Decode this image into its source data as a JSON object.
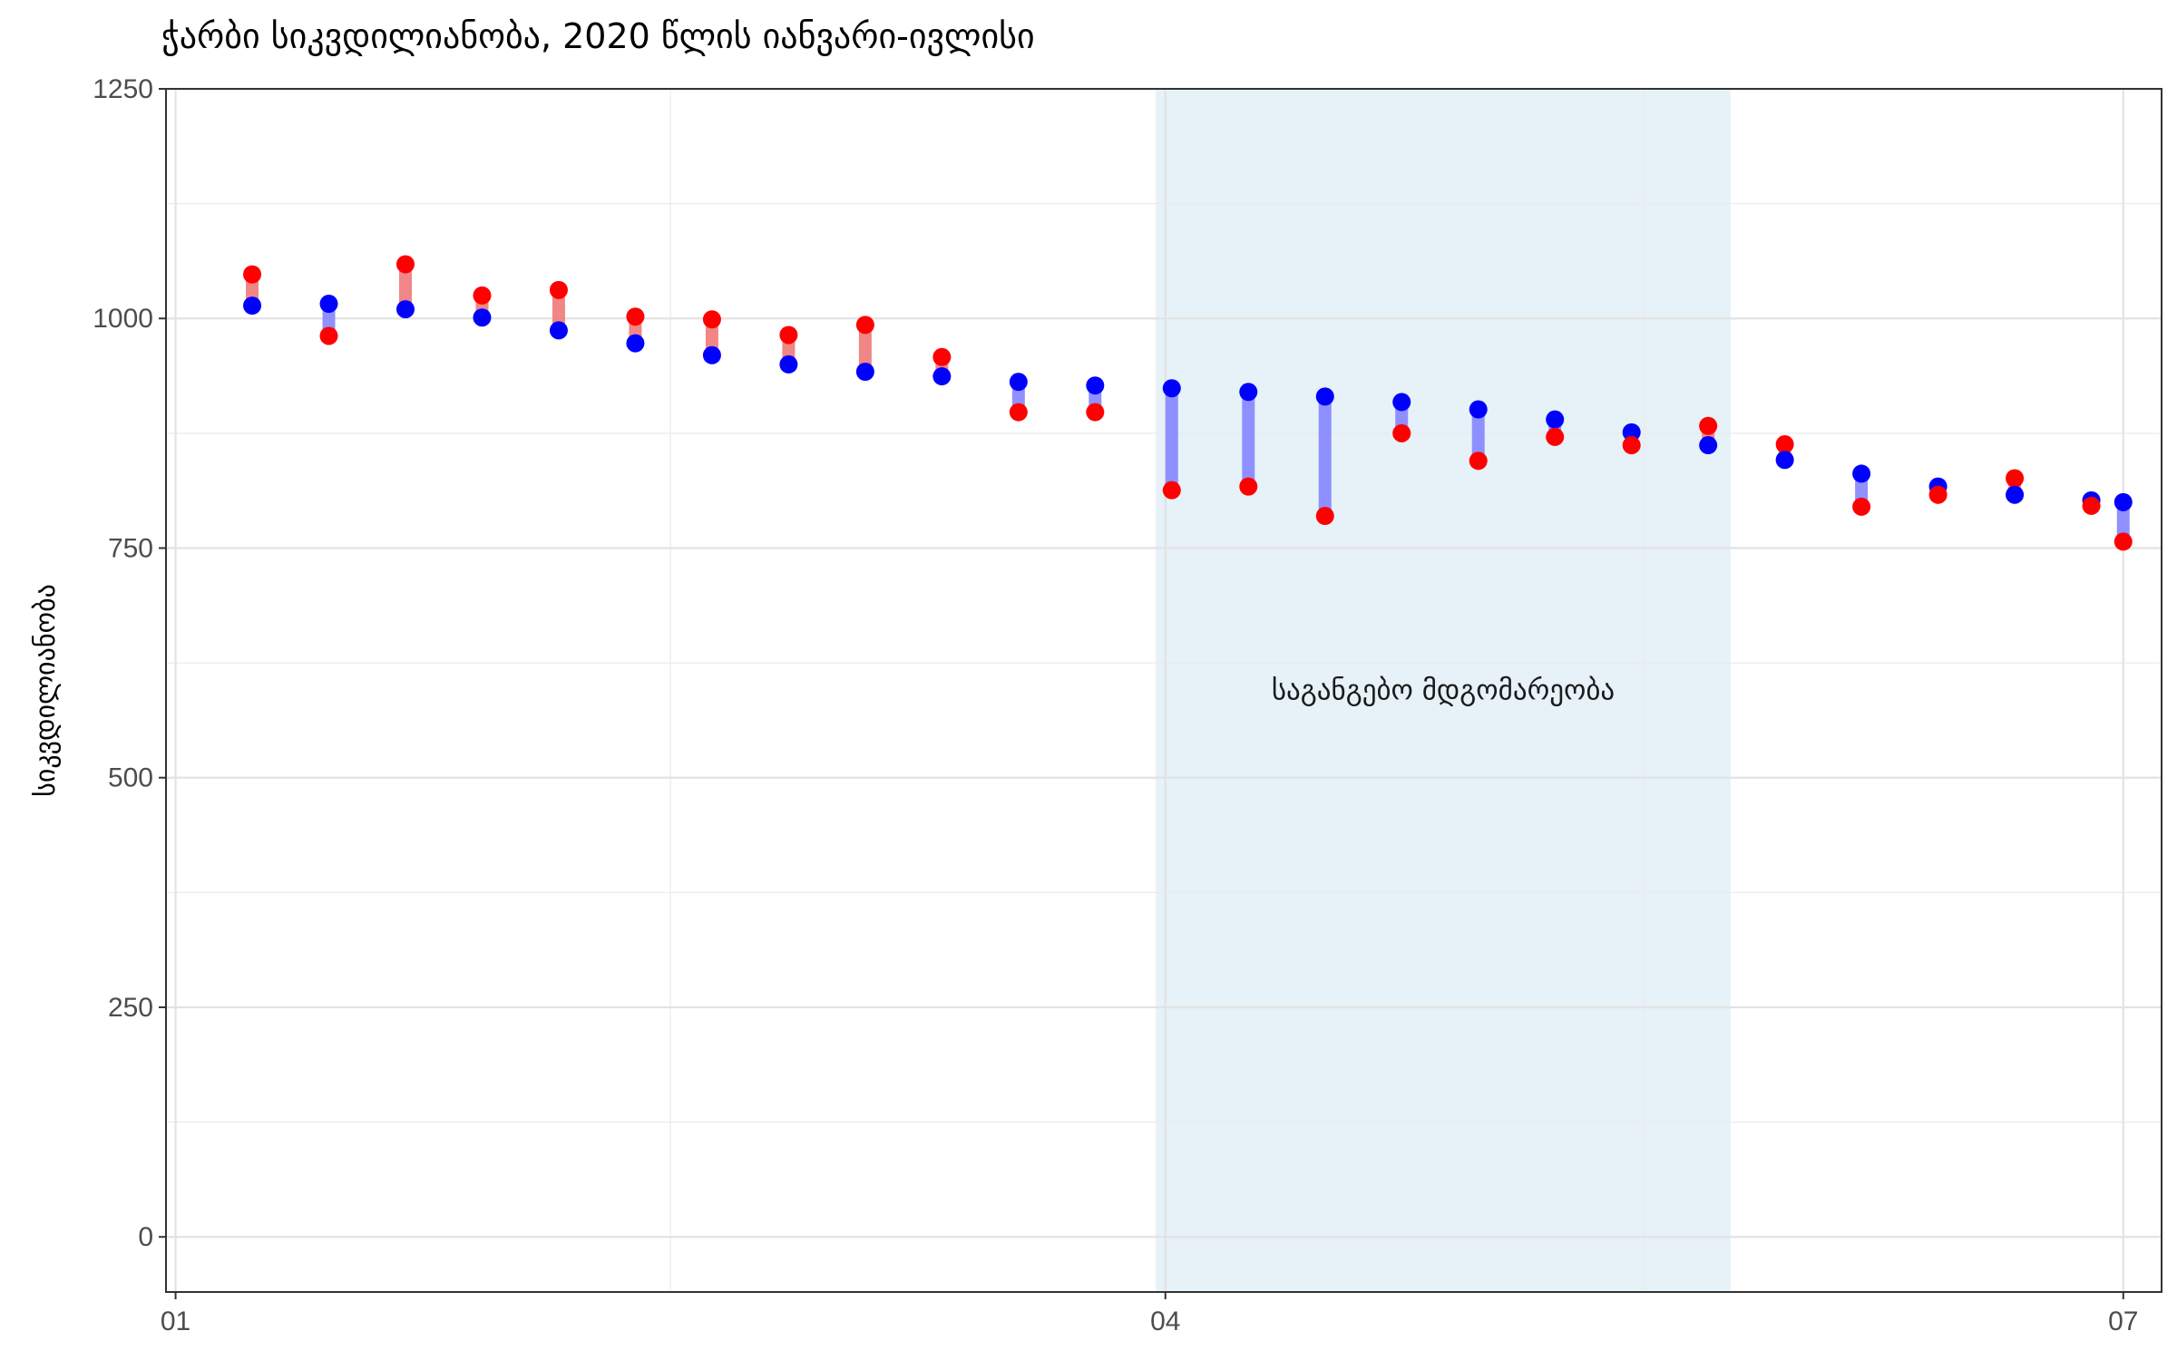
{
  "chart_data": {
    "type": "dumbbell",
    "title": "ჭარბი სიკვდილიანობა, 2020 წლის იანვარი-ივლისი",
    "ylabel": "სიკვდილიანობა",
    "xlabel": "",
    "ylim": [
      -60,
      1250
    ],
    "yticks": [
      0,
      250,
      500,
      750,
      1000,
      1250
    ],
    "xlim": [
      -0.03,
      6.22
    ],
    "xtick_labels": [
      {
        "label": "01",
        "pos": 0.0
      },
      {
        "label": "04",
        "pos": 3.1
      },
      {
        "label": "07",
        "pos": 6.1
      }
    ],
    "shaded_region": {
      "from": 3.07,
      "to": 4.87,
      "label": "საგანგებო მდგომარეობა",
      "label_y": 595
    },
    "colors": {
      "above": "#ff0000",
      "below": "#0000ff",
      "bar_above": "#f08080",
      "bar_below": "#8a8aff",
      "shade": "#e6f1f8"
    },
    "grid": true,
    "points": [
      {
        "x": 0.24,
        "red": 1048,
        "blue": 1014
      },
      {
        "x": 0.48,
        "red": 981,
        "blue": 1016
      },
      {
        "x": 0.72,
        "red": 1059,
        "blue": 1010
      },
      {
        "x": 0.96,
        "red": 1025,
        "blue": 1001
      },
      {
        "x": 1.2,
        "red": 1031,
        "blue": 987
      },
      {
        "x": 1.44,
        "red": 1002,
        "blue": 973
      },
      {
        "x": 1.68,
        "red": 999,
        "blue": 960
      },
      {
        "x": 1.92,
        "red": 982,
        "blue": 950
      },
      {
        "x": 2.16,
        "red": 993,
        "blue": 942
      },
      {
        "x": 2.4,
        "red": 958,
        "blue": 937
      },
      {
        "x": 2.64,
        "red": 898,
        "blue": 931
      },
      {
        "x": 2.88,
        "red": 898,
        "blue": 927
      },
      {
        "x": 3.12,
        "red": 813,
        "blue": 924
      },
      {
        "x": 3.36,
        "red": 817,
        "blue": 920
      },
      {
        "x": 3.6,
        "red": 785,
        "blue": 915
      },
      {
        "x": 3.84,
        "red": 875,
        "blue": 909
      },
      {
        "x": 4.08,
        "red": 845,
        "blue": 901
      },
      {
        "x": 4.32,
        "red": 871,
        "blue": 890
      },
      {
        "x": 4.56,
        "red": 862,
        "blue": 876
      },
      {
        "x": 4.8,
        "red": 883,
        "blue": 862
      },
      {
        "x": 5.04,
        "red": 863,
        "blue": 846
      },
      {
        "x": 5.28,
        "red": 795,
        "blue": 831
      },
      {
        "x": 5.52,
        "red": 808,
        "blue": 817
      },
      {
        "x": 5.76,
        "red": 826,
        "blue": 808
      },
      {
        "x": 6.0,
        "red": 796,
        "blue": 802
      },
      {
        "x": 6.1,
        "red": 757,
        "blue": 800
      }
    ]
  }
}
